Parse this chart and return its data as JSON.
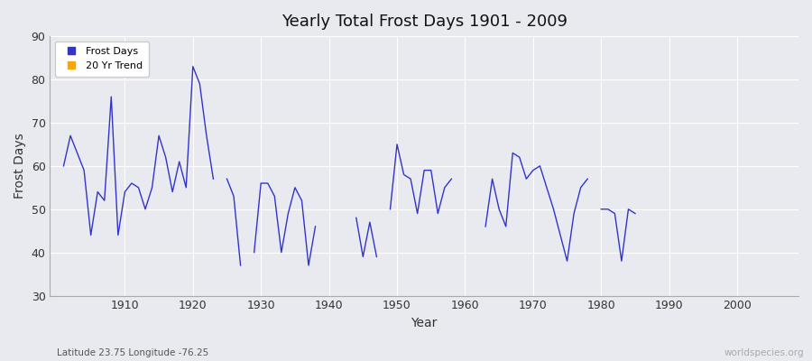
{
  "title": "Yearly Total Frost Days 1901 - 2009",
  "xlabel": "Year",
  "ylabel": "Frost Days",
  "subtitle": "Latitude 23.75 Longitude -76.25",
  "watermark": "worldspecies.org",
  "ylim": [
    30,
    90
  ],
  "xlim": [
    1899,
    2009
  ],
  "yticks": [
    30,
    40,
    50,
    60,
    70,
    80,
    90
  ],
  "xticks": [
    1910,
    1920,
    1930,
    1940,
    1950,
    1960,
    1970,
    1980,
    1990,
    2000
  ],
  "line_color": "#3333cc",
  "bg_color": "#e8eaf0",
  "grid_color": "#ffffff",
  "legend_labels": [
    "Frost Days",
    "20 Yr Trend"
  ],
  "legend_colors": [
    "#3333cc",
    "#ffa500"
  ],
  "years": [
    1901,
    1902,
    1903,
    1904,
    1905,
    1906,
    1907,
    1908,
    1909,
    1910,
    1911,
    1912,
    1913,
    1914,
    1915,
    1916,
    1917,
    1918,
    1919,
    1920,
    1921,
    1922,
    1923,
    1925,
    1926,
    1927,
    1929,
    1930,
    1931,
    1932,
    1933,
    1934,
    1935,
    1936,
    1937,
    1938,
    1944,
    1945,
    1946,
    1947,
    1949,
    1950,
    1951,
    1952,
    1953,
    1954,
    1955,
    1956,
    1957,
    1958,
    1963,
    1964,
    1965,
    1966,
    1967,
    1968,
    1969,
    1970,
    1971,
    1972,
    1973,
    1974,
    1975,
    1976,
    1977,
    1978,
    1980,
    1981,
    1982,
    1983,
    1984,
    1985
  ],
  "values": [
    60,
    67,
    63,
    59,
    44,
    54,
    52,
    76,
    44,
    54,
    56,
    55,
    50,
    55,
    67,
    62,
    54,
    61,
    55,
    83,
    79,
    67,
    57,
    57,
    53,
    37,
    40,
    56,
    56,
    53,
    40,
    49,
    55,
    52,
    37,
    46,
    48,
    39,
    47,
    39,
    50,
    65,
    58,
    57,
    49,
    59,
    59,
    49,
    55,
    57,
    46,
    57,
    50,
    46,
    63,
    62,
    57,
    59,
    60,
    55,
    50,
    44,
    38,
    49,
    55,
    57,
    50,
    50,
    49,
    38,
    50,
    49
  ]
}
